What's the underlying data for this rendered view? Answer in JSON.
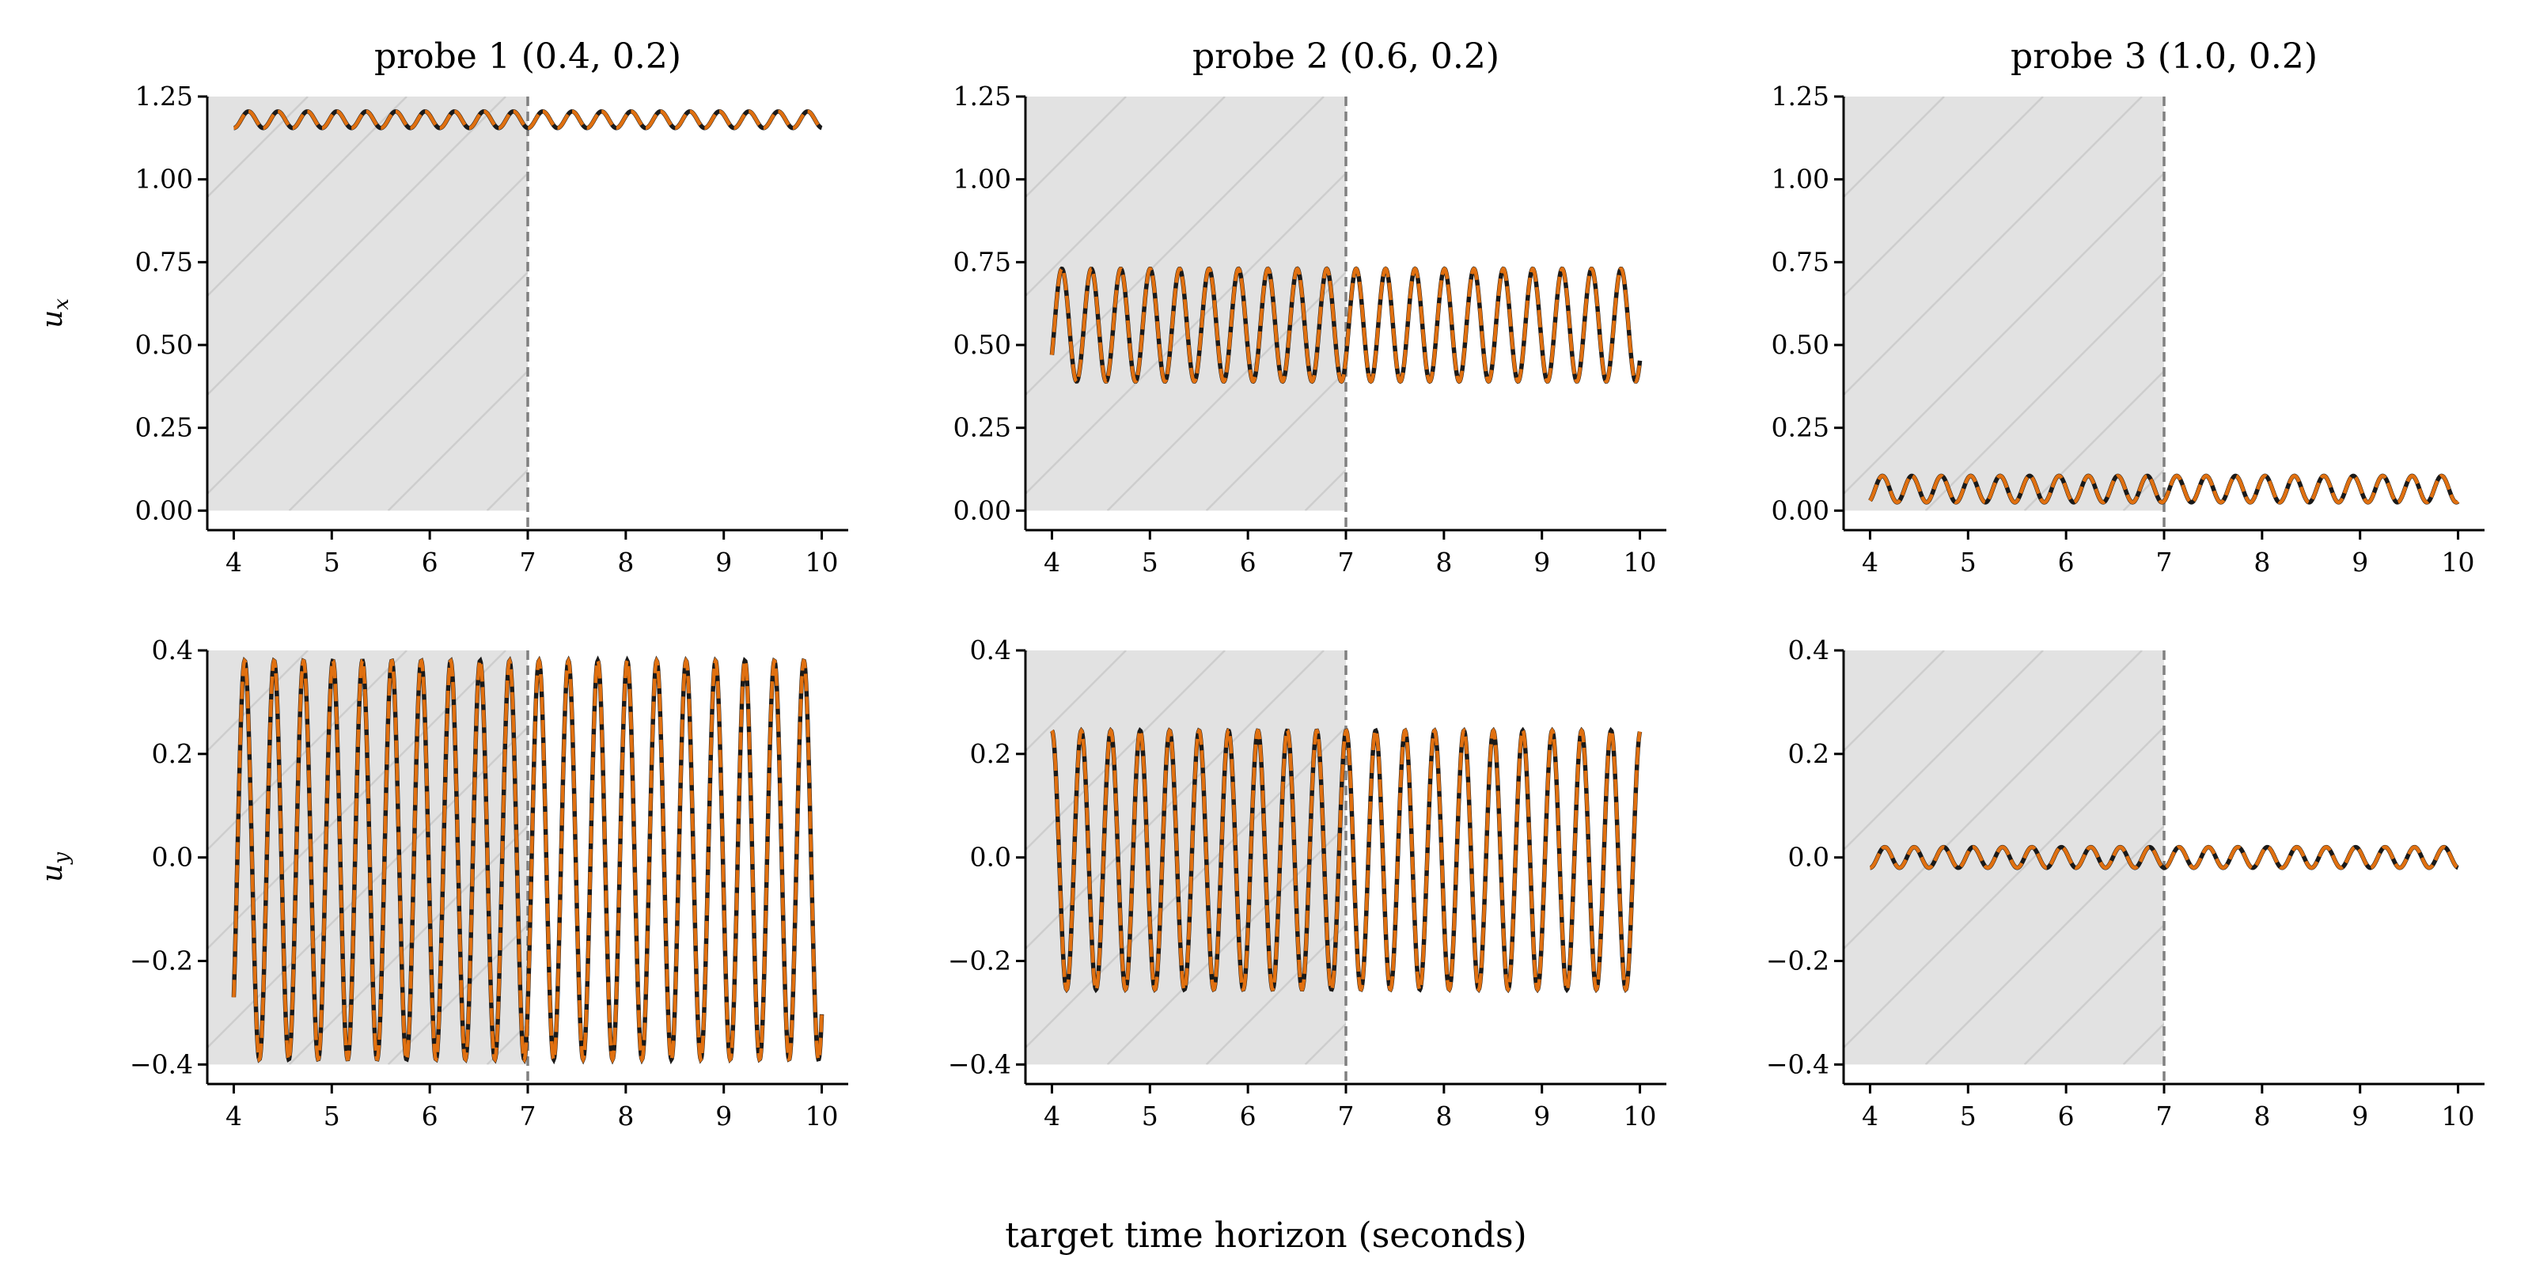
{
  "chart_data": {
    "type": "line",
    "xlabel": "target time horizon (seconds)",
    "xlim": [
      4,
      10
    ],
    "xticks": [
      "4",
      "5",
      "6",
      "7",
      "8",
      "9",
      "10"
    ],
    "training_window_end": 7,
    "colors": {
      "reference": "#1a1a1a",
      "prediction": "#e07010",
      "shade": "#e2e2e2",
      "divider": "#808080"
    },
    "rows": [
      {
        "ylabel_base": "u",
        "ylabel_sub": "x",
        "ylim": [
          0,
          1.25
        ],
        "yticks": [
          "0.00",
          "0.25",
          "0.50",
          "0.75",
          "1.00",
          "1.25"
        ]
      },
      {
        "ylabel_base": "u",
        "ylabel_sub": "y",
        "ylim": [
          -0.4,
          0.4
        ],
        "yticks": [
          "−0.4",
          "−0.2",
          "0.0",
          "0.2",
          "0.4"
        ]
      }
    ],
    "panels": [
      {
        "title": "probe 1 (0.4, 0.2)",
        "row": 0,
        "col": 0,
        "mean": 1.18,
        "amplitude": 0.025,
        "frequency_hz": 3.33,
        "x_start": 4,
        "y_start": 1.155
      },
      {
        "title": "probe 2 (0.6, 0.2)",
        "row": 0,
        "col": 1,
        "mean": 0.56,
        "amplitude": 0.17,
        "frequency_hz": 3.33,
        "x_start": 4,
        "y_start": 0.47
      },
      {
        "title": "probe 3 (1.0, 0.2)",
        "row": 0,
        "col": 2,
        "mean": 0.065,
        "amplitude": 0.04,
        "frequency_hz": 3.33,
        "x_start": 4,
        "y_start": 0.03
      },
      {
        "title": "",
        "row": 1,
        "col": 0,
        "mean": -0.005,
        "amplitude": 0.385,
        "frequency_hz": 3.33,
        "x_start": 4,
        "y_start": -0.27
      },
      {
        "title": "",
        "row": 1,
        "col": 1,
        "mean": -0.005,
        "amplitude": 0.25,
        "frequency_hz": 3.33,
        "x_start": 4,
        "y_start": 0.245
      },
      {
        "title": "",
        "row": 1,
        "col": 2,
        "mean": 0.0,
        "amplitude": 0.02,
        "frequency_hz": 3.33,
        "x_start": 4,
        "y_start": -0.02
      }
    ]
  }
}
